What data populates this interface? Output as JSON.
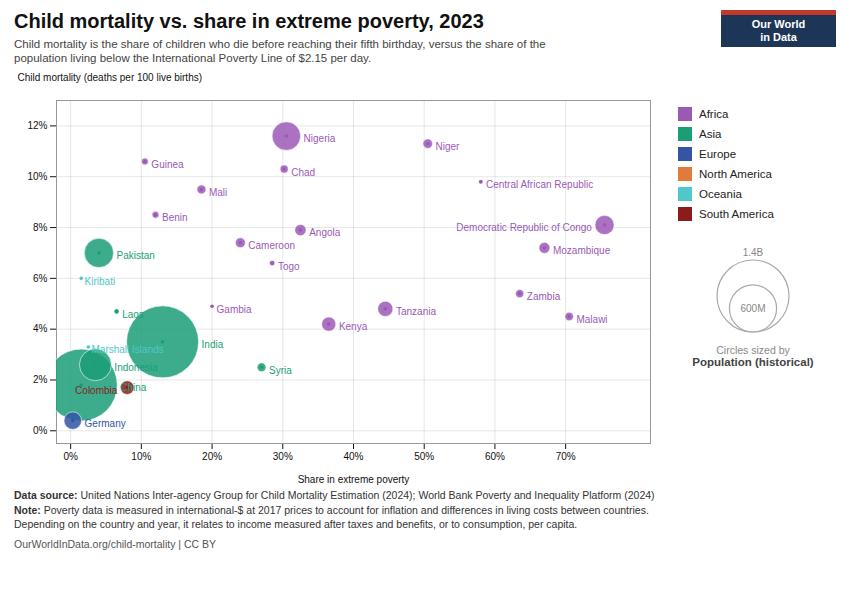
{
  "chart_data": {
    "type": "scatter",
    "title": "Child mortality vs. share in extreme poverty, 2023",
    "subtitle": "Child mortality is the share of children who die before reaching their fifth birthday, versus the share of the\npopulation living below the International Poverty Line of $2.15 per day.",
    "xlabel": "Share in extreme poverty",
    "ylabel": "Child mortality (deaths per 100 live births)",
    "xlim": [
      -2,
      82
    ],
    "ylim": [
      -0.5,
      13.0
    ],
    "xticks": [
      {
        "value": 0,
        "label": "0%"
      },
      {
        "value": 10,
        "label": "10%"
      },
      {
        "value": 20,
        "label": "20%"
      },
      {
        "value": 30,
        "label": "30%"
      },
      {
        "value": 40,
        "label": "40%"
      },
      {
        "value": 50,
        "label": "50%"
      },
      {
        "value": 60,
        "label": "60%"
      },
      {
        "value": 70,
        "label": "70%"
      }
    ],
    "yticks": [
      {
        "value": 0,
        "label": "0%"
      },
      {
        "value": 2,
        "label": "2%"
      },
      {
        "value": 4,
        "label": "4%"
      },
      {
        "value": 6,
        "label": "6%"
      },
      {
        "value": 8,
        "label": "8%"
      },
      {
        "value": 10,
        "label": "10%"
      },
      {
        "value": 12,
        "label": "12%"
      }
    ],
    "grid": true,
    "legend": "right",
    "series": [
      {
        "name": "Africa",
        "color": "#9b59b6",
        "labels": [
          "Nigeria",
          "Niger",
          "Chad",
          "Guinea",
          "Mali",
          "Central African Republic",
          "Benin",
          "Angola",
          "Democratic Republic of Congo",
          "Cameroon",
          "Togo",
          "Mozambique",
          "Gambia",
          "Kenya",
          "Tanzania",
          "Zambia",
          "Malawi"
        ],
        "x": [
          30.5,
          50.5,
          30.2,
          10.5,
          18.5,
          58.0,
          12.0,
          32.5,
          75.5,
          24.0,
          28.5,
          67.0,
          20.0,
          36.5,
          44.5,
          63.5,
          70.5
        ],
        "y": [
          11.6,
          11.3,
          10.3,
          10.6,
          9.5,
          9.8,
          8.5,
          7.9,
          8.1,
          7.4,
          6.6,
          7.2,
          4.9,
          4.2,
          4.8,
          5.4,
          4.5
        ],
        "sizes": [
          220,
          25,
          18,
          13,
          22,
          5,
          13,
          35,
          100,
          27,
          8,
          33,
          2.5,
          55,
          63,
          19,
          20
        ]
      },
      {
        "name": "Asia",
        "color": "#1a9e78",
        "labels": [
          "Pakistan",
          "Laos",
          "India",
          "Indonesia",
          "China",
          "Syria"
        ],
        "x": [
          4.0,
          6.5,
          13.0,
          3.5,
          1.5,
          27.0
        ],
        "y": [
          7.0,
          4.7,
          3.5,
          2.6,
          1.8,
          2.5
        ],
        "sizes": [
          231,
          7,
          1400,
          276,
          1400,
          21
        ]
      },
      {
        "name": "Europe",
        "color": "#3455a4",
        "labels": [
          "Germany"
        ],
        "x": [
          0.3
        ],
        "y": [
          0.4
        ],
        "sizes": [
          84
        ]
      },
      {
        "name": "North America",
        "color": "#e07b39",
        "labels": [],
        "x": [],
        "y": [],
        "sizes": []
      },
      {
        "name": "Oceania",
        "color": "#4ec8c8",
        "labels": [
          "Marshall Islands",
          "Kiribati"
        ],
        "x": [
          2.5,
          1.5
        ],
        "y": [
          3.3,
          6.0
        ],
        "sizes": [
          0.04,
          0.12
        ]
      },
      {
        "name": "South America",
        "color": "#8b1c1c",
        "labels": [
          "Colombia"
        ],
        "x": [
          8.0
        ],
        "y": [
          1.7
        ],
        "sizes": [
          51
        ]
      }
    ],
    "size_legend": {
      "title": "Circles sized by",
      "label": "Population (historical)",
      "values": [
        1400,
        600
      ],
      "labels": [
        "1.4B",
        "600M"
      ]
    },
    "logo": {
      "texts": [
        "Our World",
        "in Data"
      ],
      "colors": [
        "#1d3557",
        "#c0392b"
      ]
    },
    "source_label": "Data source:",
    "source": " United Nations Inter-agency Group for Child Mortality Estimation (2024); World Bank Poverty and Inequality Platform (2024)",
    "note_label": "Note:",
    "note": " Poverty data is measured in international-$ at 2017 prices to account for inflation and differences in living costs between countries.\nDepending on the country and year, it relates to income measured after taxes and benefits, or to consumption, per capita.",
    "credit": "OurWorldInData.org/child-mortality | CC BY"
  }
}
